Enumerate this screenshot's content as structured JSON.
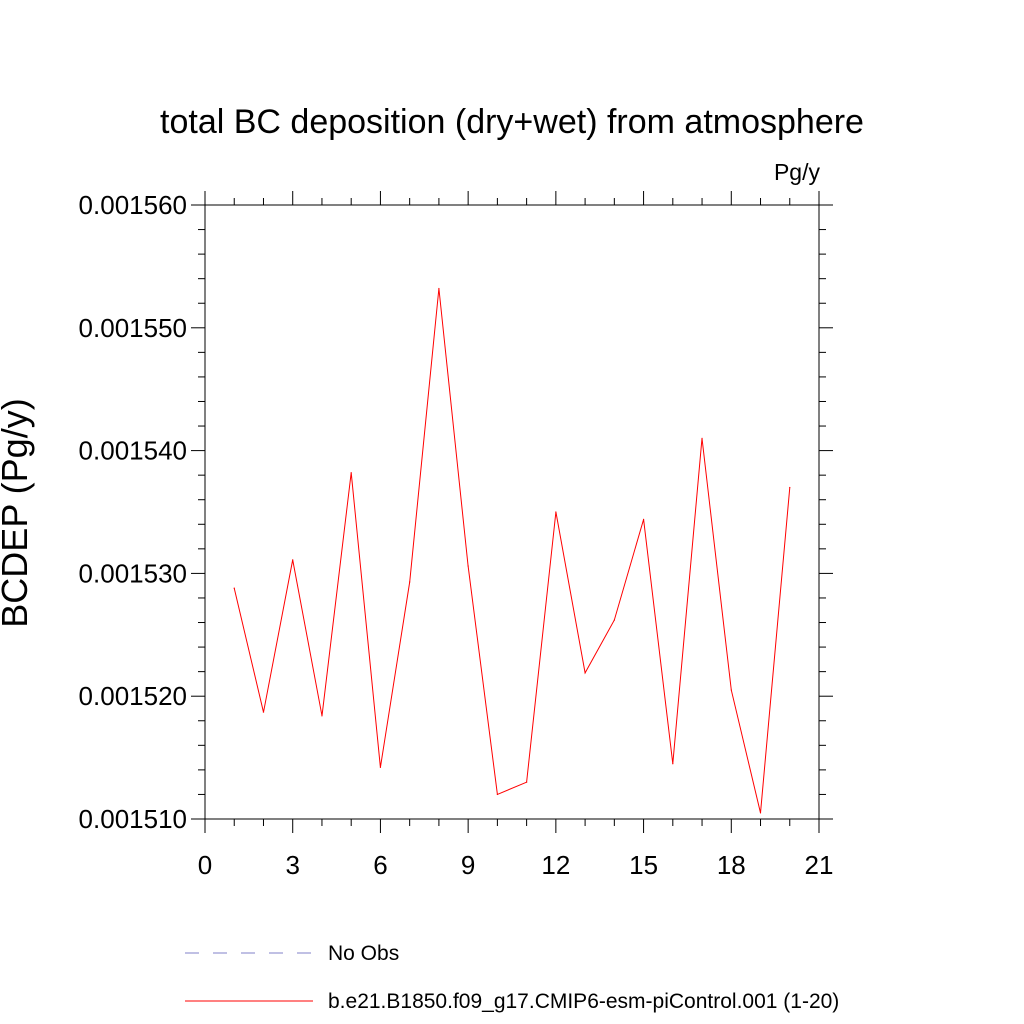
{
  "chart_data": {
    "type": "line",
    "title": "total BC deposition (dry+wet) from atmosphere",
    "units": "Pg/y",
    "ylabel": "BCDEP  (Pg/y)",
    "xlabel": "",
    "xlim": [
      0,
      21
    ],
    "ylim": [
      0.00151,
      0.00156
    ],
    "xticks": [
      "0",
      "3",
      "6",
      "9",
      "12",
      "15",
      "18",
      "21"
    ],
    "yticks": [
      "0.001510",
      "0.001520",
      "0.001530",
      "0.001540",
      "0.001550",
      "0.001560"
    ],
    "grid": false,
    "legend_position": "bottom",
    "series": [
      {
        "name": "No Obs",
        "color": "#8080c8",
        "style": "dashed",
        "x": [],
        "values": []
      },
      {
        "name": "b.e21.B1850.f09_g17.CMIP6-esm-piControl.001 (1-20)",
        "color": "#ff0000",
        "style": "solid",
        "x": [
          1,
          2,
          3,
          4,
          5,
          6,
          7,
          8,
          9,
          10,
          11,
          12,
          13,
          14,
          15,
          16,
          17,
          18,
          19,
          20
        ],
        "values": [
          0.0015288,
          0.0015187,
          0.0015311,
          0.0015184,
          0.0015382,
          0.0015142,
          0.0015293,
          0.0015532,
          0.0015306,
          0.001512,
          0.001513,
          0.001535,
          0.0015219,
          0.0015262,
          0.0015344,
          0.0015145,
          0.001541,
          0.0015205,
          0.0015105,
          0.001537
        ]
      }
    ]
  }
}
